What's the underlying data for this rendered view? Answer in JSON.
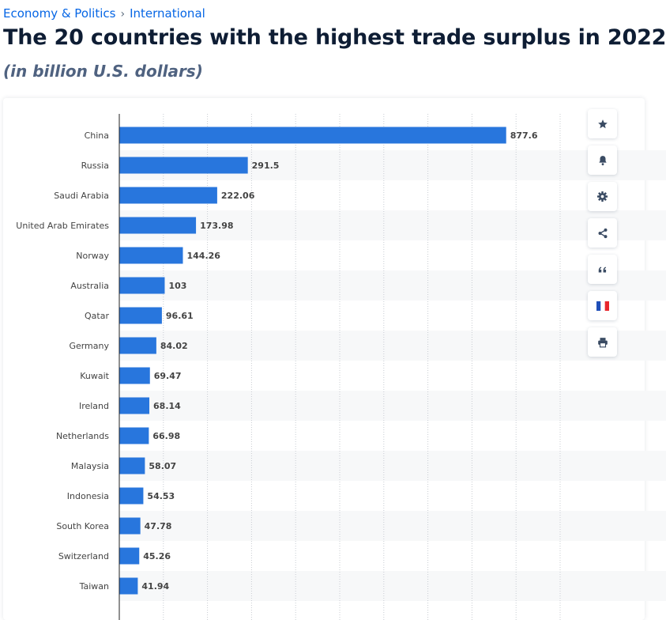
{
  "breadcrumb": {
    "items": [
      "Economy & Politics",
      "International"
    ],
    "separator": "›"
  },
  "page": {
    "title": "The 20 countries with the highest trade surplus in 2022",
    "subtitle": "(in billion U.S. dollars)"
  },
  "toolbar": {
    "icons": [
      "star-icon",
      "bell-icon",
      "gear-icon",
      "share-icon",
      "quote-icon",
      "french-flag-icon",
      "print-icon"
    ]
  },
  "colors": {
    "bar": "#2876dd",
    "accent": "#0666e5",
    "title": "#0e1d34",
    "label": "#444444",
    "stripe": "#f7f8f9",
    "grid": "#c8ccd2",
    "flag_blue": "#1f4fb8",
    "flag_red": "#e8262c"
  },
  "chart_data": {
    "type": "bar",
    "orientation": "horizontal",
    "categories": [
      "China",
      "Russia",
      "Saudi Arabia",
      "United Arab Emirates",
      "Norway",
      "Australia",
      "Qatar",
      "Germany",
      "Kuwait",
      "Ireland",
      "Netherlands",
      "Malaysia",
      "Indonesia",
      "South Korea",
      "Switzerland",
      "Taiwan"
    ],
    "values": [
      877.6,
      291.5,
      222.06,
      173.98,
      144.26,
      103,
      96.61,
      84.02,
      69.47,
      68.14,
      66.98,
      58.07,
      54.53,
      47.78,
      45.26,
      41.94
    ],
    "value_labels": [
      "877.6",
      "291.5",
      "222.06",
      "173.98",
      "144.26",
      "103",
      "96.61",
      "84.02",
      "69.47",
      "68.14",
      "66.98",
      "58.07",
      "54.53",
      "47.78",
      "45.26",
      "41.94"
    ],
    "xlim": [
      0,
      1000
    ],
    "grid": true,
    "grid_style": "dotted vertical"
  }
}
